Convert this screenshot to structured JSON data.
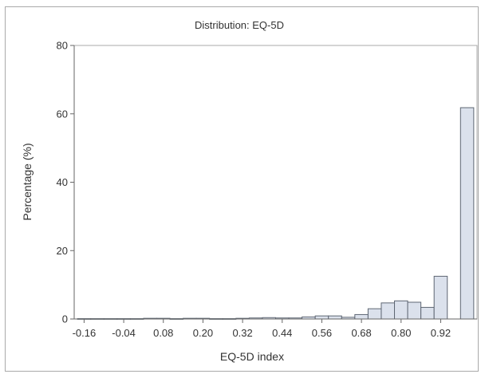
{
  "chart_data": {
    "type": "bar",
    "title": "Distribution: EQ-5D",
    "xlabel": "EQ-5D index",
    "ylabel": "Percentage (%)",
    "ylim": [
      0,
      80
    ],
    "xlim": [
      -0.19,
      1.03
    ],
    "yticks": [
      "0",
      "20",
      "40",
      "60",
      "80"
    ],
    "xticks": [
      "-0.16",
      "-0.04",
      "0.08",
      "0.20",
      "0.32",
      "0.44",
      "0.56",
      "0.68",
      "0.80",
      "0.92"
    ],
    "bin_width": 0.04,
    "grid": false,
    "series": [
      {
        "bin_centers": [
          -0.16,
          -0.12,
          -0.08,
          -0.04,
          0.0,
          0.04,
          0.08,
          0.12,
          0.16,
          0.2,
          0.24,
          0.28,
          0.32,
          0.36,
          0.4,
          0.44,
          0.48,
          0.52,
          0.56,
          0.6,
          0.64,
          0.68,
          0.72,
          0.76,
          0.8,
          0.84,
          0.88,
          0.92,
          0.96,
          1.0
        ],
        "values": [
          0.1,
          0.1,
          0.1,
          0.1,
          0.1,
          0.2,
          0.2,
          0.1,
          0.2,
          0.2,
          0.1,
          0.1,
          0.2,
          0.3,
          0.4,
          0.3,
          0.3,
          0.6,
          0.9,
          0.9,
          0.5,
          1.3,
          3.0,
          4.7,
          5.3,
          4.9,
          3.4,
          12.5,
          0,
          61.8
        ]
      }
    ]
  }
}
